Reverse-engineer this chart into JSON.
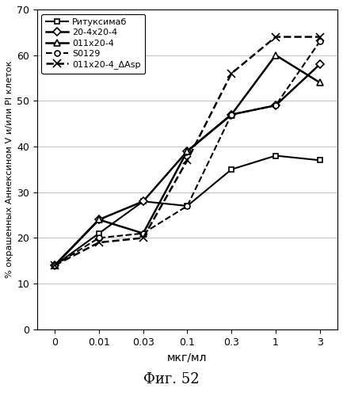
{
  "x_values": [
    0,
    0.01,
    0.03,
    0.1,
    0.3,
    1,
    3
  ],
  "series": [
    {
      "label": "Ритуксимаб",
      "values": [
        14,
        21,
        28,
        27,
        35,
        38,
        37
      ],
      "linestyle": "solid",
      "marker": "s",
      "markersize": 5,
      "linewidth": 1.5,
      "markerfacecolor": "white"
    },
    {
      "label": "20-4x20-4",
      "values": [
        14,
        24,
        28,
        39,
        47,
        49,
        58
      ],
      "linestyle": "solid",
      "marker": "D",
      "markersize": 5,
      "linewidth": 1.8,
      "markerfacecolor": "white"
    },
    {
      "label": "011x20-4",
      "values": [
        14,
        24,
        21,
        39,
        47,
        60,
        54
      ],
      "linestyle": "solid",
      "marker": "^",
      "markersize": 6,
      "linewidth": 1.8,
      "markerfacecolor": "white"
    },
    {
      "label": "S0129",
      "values": [
        14,
        20,
        21,
        27,
        47,
        49,
        63
      ],
      "linestyle": "dashed",
      "marker": "o",
      "markersize": 5,
      "linewidth": 1.5,
      "markerfacecolor": "white"
    },
    {
      "label": "011x20-4_ΔAsp",
      "values": [
        14,
        19,
        20,
        37,
        56,
        64,
        64
      ],
      "linestyle": "dashed",
      "marker": "x",
      "markersize": 7,
      "linewidth": 1.8,
      "markerfacecolor": "black"
    }
  ],
  "xlabel": "мкг/мл",
  "ylabel": "% окрашенных Аннексином V и/или PI клеток",
  "title": "Фиг. 52",
  "ylim": [
    0,
    70
  ],
  "yticks": [
    0,
    10,
    20,
    30,
    40,
    50,
    60,
    70
  ],
  "x_tick_labels": [
    "0",
    "0.01",
    "0.03",
    "0.1",
    "0.3",
    "1",
    "3"
  ],
  "bgcolor": "#ffffff"
}
